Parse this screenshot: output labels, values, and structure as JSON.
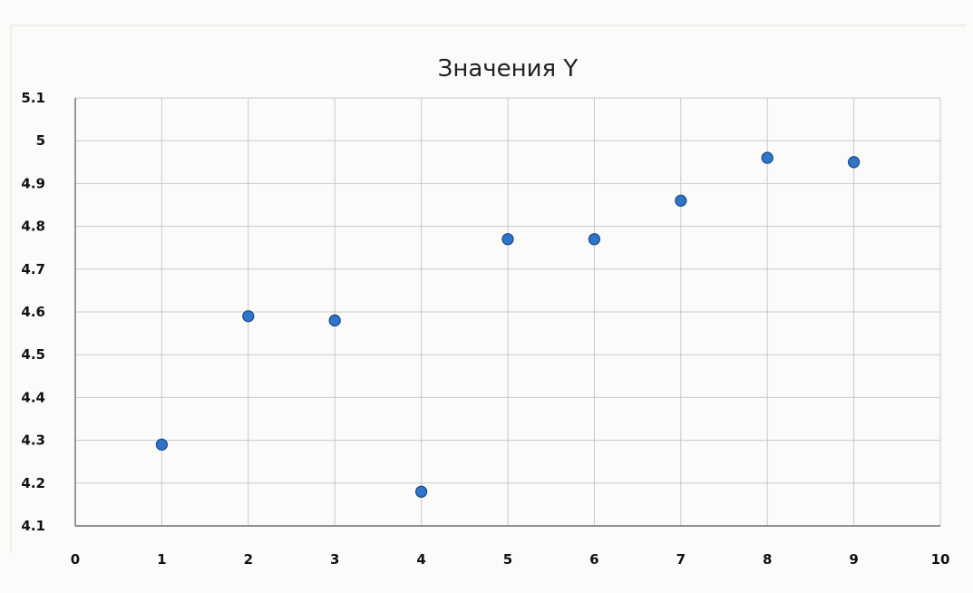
{
  "chart_data": {
    "type": "scatter",
    "title": "Значения Y",
    "xlabel": "",
    "ylabel": "",
    "xlim": [
      0,
      10
    ],
    "ylim": [
      4.1,
      5.1
    ],
    "x_ticks": [
      0,
      1,
      2,
      3,
      4,
      5,
      6,
      7,
      8,
      9,
      10
    ],
    "y_ticks": [
      4.1,
      4.2,
      4.3,
      4.4,
      4.5,
      4.6,
      4.7,
      4.8,
      4.9,
      5,
      5.1
    ],
    "grid": true,
    "legend": false,
    "marker_color": "#2f74c7",
    "points": [
      {
        "x": 1,
        "y": 4.29
      },
      {
        "x": 2,
        "y": 4.59
      },
      {
        "x": 3,
        "y": 4.58
      },
      {
        "x": 4,
        "y": 4.18
      },
      {
        "x": 5,
        "y": 4.77
      },
      {
        "x": 6,
        "y": 4.77
      },
      {
        "x": 7,
        "y": 4.86
      },
      {
        "x": 8,
        "y": 4.96
      },
      {
        "x": 9,
        "y": 4.95
      }
    ]
  }
}
